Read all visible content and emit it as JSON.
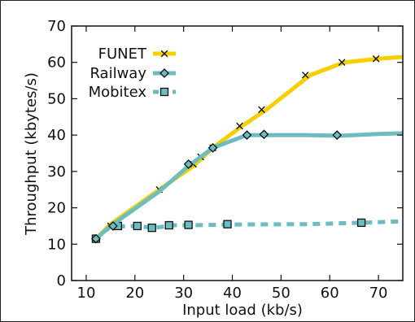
{
  "chart_data": {
    "type": "line",
    "title": "",
    "xlabel": "Input load (kb/s)",
    "ylabel": "Throughput (kbytes/s)",
    "xlim": [
      7,
      75
    ],
    "ylim": [
      0,
      70
    ],
    "xticks": [
      10,
      20,
      30,
      40,
      50,
      60,
      70
    ],
    "yticks": [
      0,
      10,
      20,
      30,
      40,
      50,
      60,
      70
    ],
    "grid": false,
    "legend_position": "top-left",
    "series": [
      {
        "name": "FUNET",
        "color": "#f5cf00",
        "line_style": "solid",
        "marker": "x",
        "line_x": [
          12,
          15,
          25,
          32,
          36,
          42,
          47,
          56,
          63,
          70,
          75
        ],
        "line_y": [
          11.5,
          15.5,
          25,
          31.5,
          36.5,
          42.5,
          47,
          56.5,
          60,
          61,
          61.5
        ],
        "marker_x": [
          15,
          25,
          32,
          33.5,
          36,
          41.5,
          46,
          55,
          62.5,
          69.5
        ],
        "marker_y": [
          15,
          25,
          32,
          34,
          36.5,
          42.5,
          47,
          56.5,
          60,
          61
        ]
      },
      {
        "name": "Railway",
        "color": "#6cbcc0",
        "line_style": "solid",
        "marker": "diamond",
        "line_x": [
          12,
          15,
          25,
          31,
          36,
          43,
          46,
          55,
          62,
          70,
          75
        ],
        "line_y": [
          11.5,
          15,
          24.5,
          31.5,
          36.5,
          40,
          40,
          40,
          39.8,
          40.3,
          40.5
        ],
        "marker_x": [
          12,
          15.5,
          31,
          36,
          43,
          46.5,
          61.5
        ],
        "marker_y": [
          11.5,
          15,
          32,
          36.5,
          40,
          40.2,
          40
        ]
      },
      {
        "name": "Mobitex",
        "color": "#6cbcc0",
        "line_style": "dashed",
        "marker": "square",
        "line_x": [
          12,
          15,
          20,
          24,
          28,
          31,
          40,
          55,
          67,
          75
        ],
        "line_y": [
          11.5,
          14.8,
          15,
          14.5,
          15.2,
          15.2,
          15.4,
          15.5,
          15.9,
          16.3
        ],
        "marker_x": [
          12,
          16.5,
          20.5,
          23.5,
          27,
          31,
          39,
          66.5
        ],
        "marker_y": [
          11.5,
          15,
          15,
          14.5,
          15.2,
          15.3,
          15.5,
          15.9
        ]
      }
    ]
  }
}
